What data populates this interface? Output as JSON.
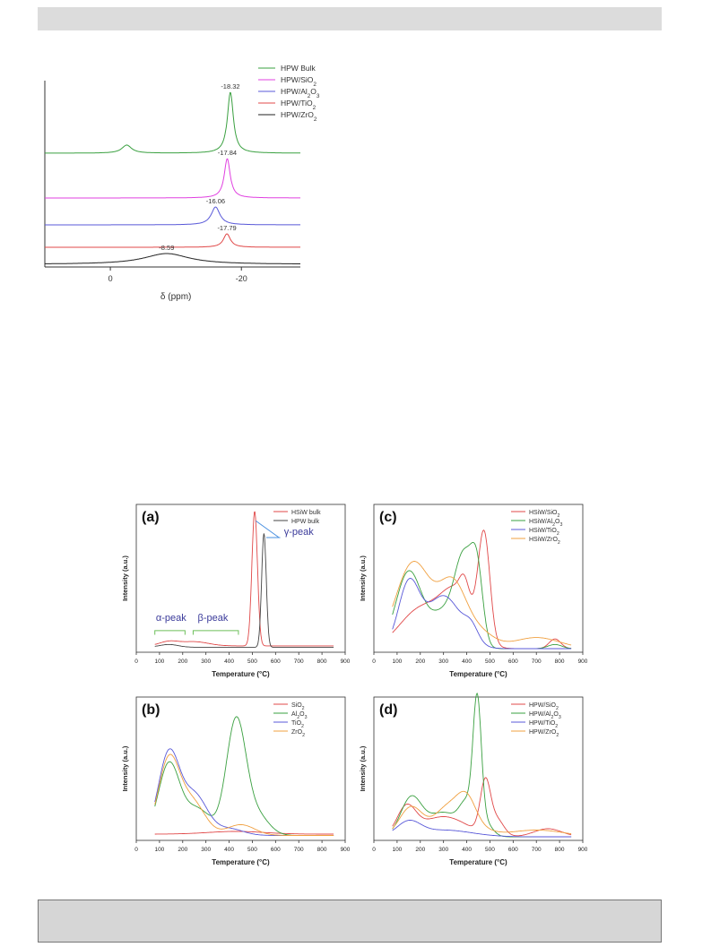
{
  "chart_data": [
    {
      "type": "line",
      "title": "",
      "xlabel": "δ (ppm)",
      "ylabel": "",
      "xlim": [
        10,
        -29
      ],
      "x_ticks": [
        "0",
        "-20"
      ],
      "legend": "top-right",
      "series": [
        {
          "name": "HPW Bulk",
          "color": "#3aa040",
          "peak": -18.32,
          "peak_label": "-18.32",
          "peak_height": 68,
          "peak_width": 0.55,
          "extra_peaks": [
            {
              "x": -2.5,
              "h": 9,
              "w": 0.9
            }
          ]
        },
        {
          "name": "HPW/SiO2",
          "color": "#e040e0",
          "peak": -17.84,
          "peak_label": "-17.84",
          "peak_height": 44,
          "peak_width": 0.55,
          "extra_peaks": []
        },
        {
          "name": "HPW/Al2O3",
          "color": "#5858d8",
          "peak": -16.06,
          "peak_label": "-16.06",
          "peak_height": 20,
          "peak_width": 0.8,
          "extra_peaks": []
        },
        {
          "name": "HPW/TiO2",
          "color": "#e04848",
          "peak": -17.79,
          "peak_label": "-17.79",
          "peak_height": 15,
          "peak_width": 0.65,
          "extra_peaks": []
        },
        {
          "name": "HPW/ZrO2",
          "color": "#222222",
          "peak": -8.59,
          "peak_label": "-8.59",
          "peak_height": 12,
          "peak_width": 4.2,
          "extra_peaks": []
        }
      ]
    },
    {
      "type": "line",
      "panel_label": "(a)",
      "xlabel": "Temperature (°C)",
      "ylabel": "Intensity (a.u.)",
      "xlim": [
        0,
        900
      ],
      "x_ticks": [
        0,
        100,
        200,
        300,
        400,
        500,
        600,
        700,
        800,
        900
      ],
      "ymax": 100,
      "legend": "top-right",
      "annotations": [
        "α-peak",
        "β-peak",
        "γ-peak"
      ],
      "series": [
        {
          "name": "HSiW bulk",
          "color": "#e04848",
          "start": 80,
          "end": 850,
          "base": 2,
          "peaks": [
            [
              140,
              3,
              40
            ],
            [
              250,
              3,
              60
            ],
            [
              510,
              97,
              12
            ]
          ]
        },
        {
          "name": "HPW bulk",
          "color": "#444444",
          "start": 80,
          "end": 850,
          "base": 1,
          "peaks": [
            [
              140,
              2,
              40
            ],
            [
              550,
              82,
              10
            ]
          ]
        }
      ]
    },
    {
      "type": "line",
      "panel_label": "(c)",
      "xlabel": "Temperature (°C)",
      "ylabel": "Intensity (a.u.)",
      "xlim": [
        0,
        900
      ],
      "x_ticks": [
        0,
        100,
        200,
        300,
        400,
        500,
        600,
        700,
        800,
        900
      ],
      "ymax": 100,
      "legend": "top-right",
      "series": [
        {
          "name": "HSiW/SiO2",
          "color": "#e04848",
          "start": 80,
          "end": 850,
          "base": 0,
          "peaks": [
            [
              200,
              28,
              90
            ],
            [
              360,
              38,
              70
            ],
            [
              390,
              15,
              20
            ],
            [
              475,
              75,
              25
            ],
            [
              780,
              7,
              25
            ]
          ]
        },
        {
          "name": "HSiW/Al2O3",
          "color": "#3aa040",
          "start": 80,
          "end": 850,
          "base": 0,
          "peaks": [
            [
              150,
              55,
              55
            ],
            [
              300,
              25,
              60
            ],
            [
              390,
              60,
              40
            ],
            [
              445,
              45,
              25
            ],
            [
              780,
              3,
              30
            ]
          ]
        },
        {
          "name": "HSiW/TiO2",
          "color": "#5858d8",
          "start": 80,
          "end": 850,
          "base": 0,
          "peaks": [
            [
              150,
              45,
              45
            ],
            [
              300,
              38,
              75
            ],
            [
              420,
              10,
              30
            ]
          ]
        },
        {
          "name": "HSiW/ZrO2",
          "color": "#f0a040",
          "start": 80,
          "end": 850,
          "base": 0,
          "peaks": [
            [
              170,
              62,
              75
            ],
            [
              340,
              45,
              60
            ],
            [
              460,
              10,
              60
            ],
            [
              700,
              8,
              100
            ]
          ]
        }
      ]
    },
    {
      "type": "line",
      "panel_label": "(b)",
      "xlabel": "Temperature (°C)",
      "ylabel": "Intensity (a.u.)",
      "xlim": [
        0,
        900
      ],
      "x_ticks": [
        0,
        100,
        200,
        300,
        400,
        500,
        600,
        700,
        800,
        900
      ],
      "ymax": 100,
      "legend": "top-right",
      "series": [
        {
          "name": "SiO2",
          "color": "#e04848",
          "start": 80,
          "end": 850,
          "base": 2,
          "peaks": [
            [
              430,
              2,
              120
            ]
          ]
        },
        {
          "name": "Al2O3",
          "color": "#3aa040",
          "start": 80,
          "end": 850,
          "base": 1,
          "peaks": [
            [
              140,
              52,
              45
            ],
            [
              260,
              20,
              60
            ],
            [
              430,
              85,
              42
            ],
            [
              520,
              15,
              50
            ]
          ]
        },
        {
          "name": "TiO2",
          "color": "#5858d8",
          "start": 80,
          "end": 850,
          "base": 1,
          "peaks": [
            [
              140,
              60,
              45
            ],
            [
              250,
              30,
              55
            ],
            [
              400,
              5,
              60
            ]
          ]
        },
        {
          "name": "ZrO2",
          "color": "#f0a040",
          "start": 80,
          "end": 850,
          "base": 1,
          "peaks": [
            [
              140,
              55,
              45
            ],
            [
              240,
              25,
              55
            ],
            [
              450,
              8,
              60
            ]
          ]
        }
      ]
    },
    {
      "type": "line",
      "panel_label": "(d)",
      "xlabel": "Temperature (°C)",
      "ylabel": "Intensity (a.u.)",
      "xlim": [
        0,
        900
      ],
      "x_ticks": [
        0,
        100,
        200,
        300,
        400,
        500,
        600,
        700,
        800,
        900
      ],
      "ymax": 100,
      "legend": "top-right",
      "series": [
        {
          "name": "HPW/SiO2",
          "color": "#e04848",
          "start": 80,
          "end": 850,
          "base": 0,
          "peaks": [
            [
              140,
              20,
              40
            ],
            [
              300,
              15,
              100
            ],
            [
              480,
              38,
              22
            ],
            [
              530,
              12,
              30
            ],
            [
              750,
              6,
              60
            ]
          ]
        },
        {
          "name": "HPW/Al2O3",
          "color": "#3aa040",
          "start": 80,
          "end": 850,
          "base": 0,
          "peaks": [
            [
              160,
              28,
              45
            ],
            [
              300,
              18,
              70
            ],
            [
              400,
              20,
              30
            ],
            [
              445,
              93,
              18
            ],
            [
              480,
              10,
              30
            ]
          ]
        },
        {
          "name": "HPW/TiO2",
          "color": "#5858d8",
          "start": 80,
          "end": 850,
          "base": 0,
          "peaks": [
            [
              150,
              10,
              50
            ],
            [
              300,
              5,
              120
            ]
          ]
        },
        {
          "name": "HPW/ZrO2",
          "color": "#f0a040",
          "start": 80,
          "end": 850,
          "base": 0,
          "peaks": [
            [
              160,
              22,
              50
            ],
            [
              320,
              22,
              60
            ],
            [
              400,
              20,
              40
            ],
            [
              450,
              5,
              60
            ],
            [
              700,
              5,
              120
            ]
          ]
        }
      ]
    }
  ]
}
